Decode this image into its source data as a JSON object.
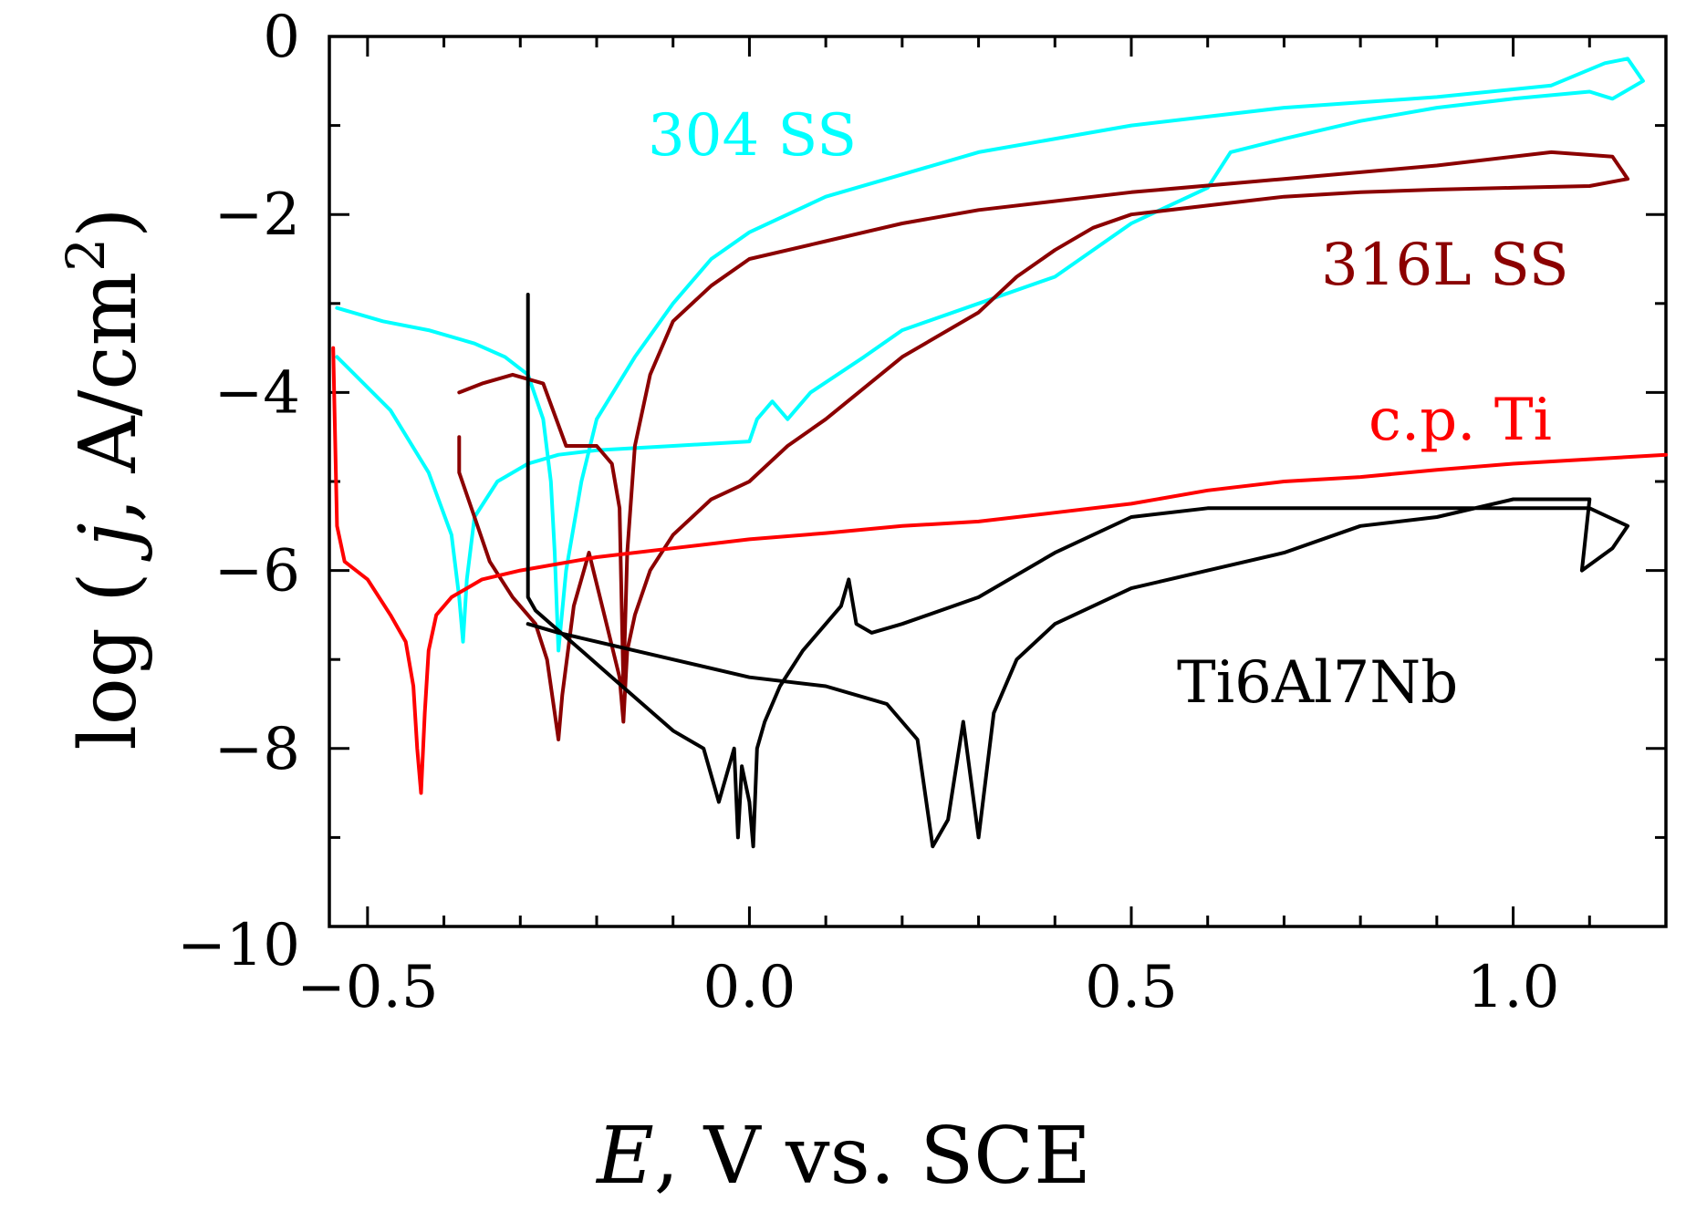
{
  "chart_data": {
    "type": "line",
    "xlabel": "E, V vs. SCE",
    "ylabel": "log ( j, A/cm2)",
    "xlim": [
      -0.55,
      1.2
    ],
    "ylim": [
      -10,
      0
    ],
    "x_ticks": [
      -0.5,
      0.0,
      0.5,
      1.0
    ],
    "x_tick_labels": [
      "−0.5",
      "0.0",
      "0.5",
      "1.0"
    ],
    "y_ticks": [
      0,
      -2,
      -4,
      -6,
      -8,
      -10
    ],
    "y_tick_labels": [
      "0",
      "−2",
      "−4",
      "−6",
      "−8",
      "−10"
    ],
    "grid": false,
    "series": [
      {
        "name": "304 SS",
        "color": "#00ffff",
        "x": [
          -0.54,
          -0.47,
          -0.42,
          -0.39,
          -0.38,
          -0.375,
          -0.37,
          -0.36,
          -0.33,
          -0.29,
          -0.25,
          -0.2,
          -0.1,
          0.0,
          0.01,
          0.03,
          0.05,
          0.08,
          0.15,
          0.2,
          0.3,
          0.4,
          0.5,
          0.6,
          0.63,
          0.7,
          0.8,
          0.9,
          1.0,
          1.1,
          1.13,
          1.17,
          1.15,
          1.12,
          1.05,
          0.9,
          0.7,
          0.5,
          0.3,
          0.2,
          0.1,
          0.0,
          -0.05,
          -0.1,
          -0.15,
          -0.2,
          -0.22,
          -0.24,
          -0.25,
          -0.255,
          -0.26,
          -0.27,
          -0.29,
          -0.32,
          -0.36,
          -0.42,
          -0.48,
          -0.54
        ],
        "y": [
          -3.6,
          -4.2,
          -4.9,
          -5.6,
          -6.3,
          -6.8,
          -6.1,
          -5.4,
          -5.0,
          -4.8,
          -4.7,
          -4.65,
          -4.6,
          -4.55,
          -4.3,
          -4.1,
          -4.3,
          -4.0,
          -3.6,
          -3.3,
          -3.0,
          -2.7,
          -2.1,
          -1.7,
          -1.3,
          -1.15,
          -0.95,
          -0.8,
          -0.7,
          -0.62,
          -0.7,
          -0.5,
          -0.25,
          -0.3,
          -0.55,
          -0.68,
          -0.8,
          -1.0,
          -1.3,
          -1.55,
          -1.8,
          -2.2,
          -2.5,
          -3.0,
          -3.6,
          -4.3,
          -5.0,
          -6.0,
          -6.9,
          -5.8,
          -5.0,
          -4.3,
          -3.8,
          -3.6,
          -3.45,
          -3.3,
          -3.2,
          -3.05
        ]
      },
      {
        "name": "316L SS",
        "color": "#8b0000",
        "x": [
          -0.38,
          -0.38,
          -0.36,
          -0.34,
          -0.31,
          -0.28,
          -0.265,
          -0.255,
          -0.25,
          -0.245,
          -0.23,
          -0.21,
          -0.19,
          -0.17,
          -0.165,
          -0.16,
          -0.15,
          -0.13,
          -0.1,
          -0.05,
          0.0,
          0.05,
          0.1,
          0.2,
          0.3,
          0.35,
          0.4,
          0.45,
          0.5,
          0.6,
          0.7,
          0.8,
          0.9,
          1.0,
          1.1,
          1.15,
          1.13,
          1.05,
          0.9,
          0.7,
          0.5,
          0.3,
          0.2,
          0.1,
          0.0,
          -0.05,
          -0.1,
          -0.13,
          -0.15,
          -0.16,
          -0.165,
          -0.17,
          -0.18,
          -0.2,
          -0.22,
          -0.24,
          -0.27,
          -0.31,
          -0.35,
          -0.38
        ],
        "y": [
          -4.5,
          -4.9,
          -5.4,
          -5.9,
          -6.3,
          -6.6,
          -7.0,
          -7.6,
          -7.9,
          -7.4,
          -6.4,
          -5.8,
          -6.5,
          -7.2,
          -7.7,
          -6.9,
          -6.5,
          -6.0,
          -5.6,
          -5.2,
          -5.0,
          -4.6,
          -4.3,
          -3.6,
          -3.1,
          -2.7,
          -2.4,
          -2.15,
          -2.0,
          -1.9,
          -1.8,
          -1.75,
          -1.72,
          -1.7,
          -1.68,
          -1.6,
          -1.35,
          -1.3,
          -1.45,
          -1.6,
          -1.75,
          -1.95,
          -2.1,
          -2.3,
          -2.5,
          -2.8,
          -3.2,
          -3.8,
          -4.6,
          -5.8,
          -7.3,
          -5.3,
          -4.8,
          -4.6,
          -4.6,
          -4.6,
          -3.9,
          -3.8,
          -3.9,
          -4.0
        ]
      },
      {
        "name": "c.p. Ti",
        "color": "#ff0000",
        "x": [
          -0.545,
          -0.54,
          -0.53,
          -0.5,
          -0.47,
          -0.45,
          -0.44,
          -0.435,
          -0.43,
          -0.425,
          -0.42,
          -0.41,
          -0.39,
          -0.35,
          -0.3,
          -0.2,
          -0.1,
          0.0,
          0.1,
          0.2,
          0.3,
          0.4,
          0.5,
          0.6,
          0.7,
          0.8,
          0.9,
          1.0,
          1.1,
          1.2
        ],
        "y": [
          -3.5,
          -5.5,
          -5.9,
          -6.1,
          -6.5,
          -6.8,
          -7.3,
          -8.0,
          -8.5,
          -7.6,
          -6.9,
          -6.5,
          -6.3,
          -6.1,
          -6.0,
          -5.85,
          -5.75,
          -5.65,
          -5.58,
          -5.5,
          -5.45,
          -5.35,
          -5.25,
          -5.1,
          -5.0,
          -4.95,
          -4.87,
          -4.8,
          -4.75,
          -4.7
        ]
      },
      {
        "name": "Ti6Al7Nb",
        "color": "#000000",
        "x": [
          -0.29,
          -0.29,
          -0.29,
          -0.28,
          -0.26,
          -0.22,
          -0.18,
          -0.14,
          -0.1,
          -0.06,
          -0.04,
          -0.02,
          -0.015,
          -0.01,
          0.0,
          0.005,
          0.01,
          0.02,
          0.04,
          0.07,
          0.1,
          0.12,
          0.13,
          0.14,
          0.16,
          0.2,
          0.3,
          0.4,
          0.5,
          0.6,
          0.7,
          0.8,
          0.9,
          1.0,
          1.1,
          1.15,
          1.13,
          1.09,
          1.1,
          1.0,
          0.9,
          0.8,
          0.7,
          0.6,
          0.5,
          0.4,
          0.35,
          0.32,
          0.3,
          0.28,
          0.26,
          0.24,
          0.22,
          0.18,
          0.1,
          0.0,
          -0.1,
          -0.2,
          -0.25,
          -0.29
        ],
        "y": [
          -2.9,
          -4.5,
          -6.3,
          -6.45,
          -6.6,
          -6.9,
          -7.2,
          -7.5,
          -7.8,
          -8.0,
          -8.6,
          -8.0,
          -9.0,
          -8.2,
          -8.6,
          -9.1,
          -8.0,
          -7.7,
          -7.3,
          -6.9,
          -6.6,
          -6.4,
          -6.1,
          -6.6,
          -6.7,
          -6.6,
          -6.3,
          -5.8,
          -5.4,
          -5.3,
          -5.3,
          -5.3,
          -5.3,
          -5.3,
          -5.3,
          -5.5,
          -5.75,
          -6.0,
          -5.2,
          -5.2,
          -5.4,
          -5.5,
          -5.8,
          -6.0,
          -6.2,
          -6.6,
          -7.0,
          -7.6,
          -9.0,
          -7.7,
          -8.8,
          -9.1,
          -7.9,
          -7.5,
          -7.3,
          -7.2,
          -7.0,
          -6.8,
          -6.7,
          -6.6
        ]
      }
    ]
  }
}
